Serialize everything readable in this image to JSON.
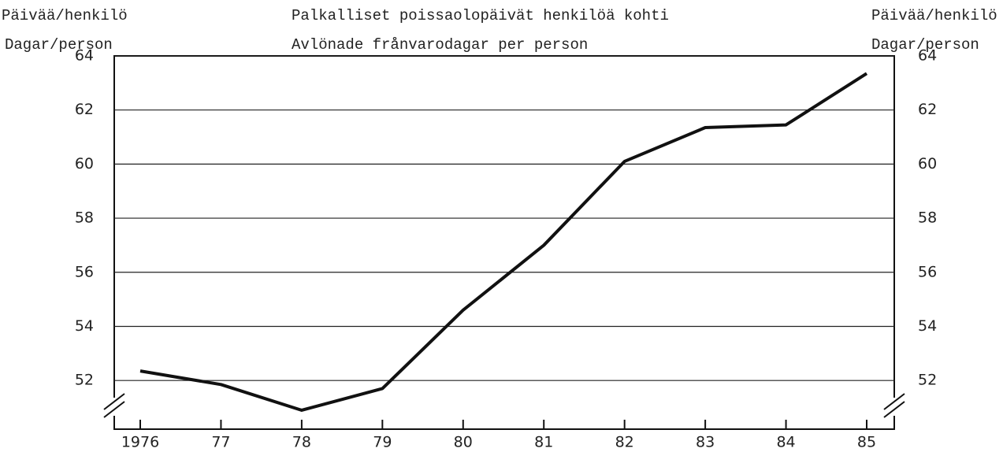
{
  "chart_data": {
    "type": "line",
    "title": [
      "Palkalliset poissaolopäivät henkilöä kohti",
      "Avlönade frånvarodagar per person"
    ],
    "ylabel": [
      "Päivää/henkilö",
      "Dagar/person"
    ],
    "y2label": [
      "Päivää/henkilö",
      "Dagar/person"
    ],
    "categories": [
      "1976",
      "77",
      "78",
      "79",
      "80",
      "81",
      "82",
      "83",
      "84",
      "85"
    ],
    "values": [
      52.35,
      51.85,
      50.9,
      51.7,
      54.6,
      57.0,
      60.1,
      61.35,
      61.45,
      63.35
    ],
    "color": "#111111",
    "ylim": [
      50.2,
      64
    ],
    "yticks": [
      52,
      54,
      56,
      58,
      60,
      62,
      64
    ],
    "y2lim": [
      50.2,
      64
    ],
    "y2ticks": [
      52,
      54,
      56,
      58,
      60,
      62,
      64
    ],
    "grid": true
  }
}
